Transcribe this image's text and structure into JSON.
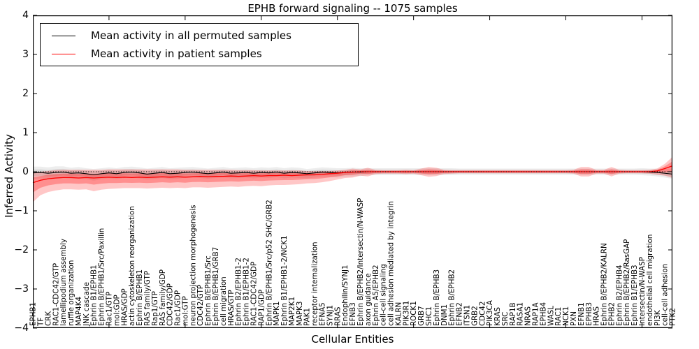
{
  "title": "EPHB forward signaling -- 1075 samples",
  "axes": {
    "ylabel": "Inferred Activity",
    "xlabel": "Cellular Entities",
    "yticks": [
      "4",
      "3",
      "2",
      "1",
      "0",
      "−1",
      "−2",
      "−3",
      "−4"
    ],
    "ylim": [
      -4,
      4
    ],
    "x_major_tick_every": 10
  },
  "legend": {
    "items": [
      {
        "label": "Mean activity in all permuted samples",
        "color": "#000000"
      },
      {
        "label": "Mean activity in patient samples",
        "color": "#ff0000"
      }
    ]
  },
  "colors": {
    "background": "#ffffff",
    "axis": "#000000",
    "permuted_line": "#000000",
    "permuted_band": "#999999",
    "patient_line": "#ff0000",
    "patient_band": "#ff0000",
    "zero_line": "#000000"
  },
  "chart_data": {
    "type": "line",
    "title": "EPHB forward signaling -- 1075 samples",
    "xlabel": "Cellular Entities",
    "ylabel": "Inferred Activity",
    "ylim": [
      -4,
      4
    ],
    "grid": false,
    "legend_position": "upper left",
    "zero_line": {
      "value": 0,
      "style": "dotted",
      "color": "#000000"
    },
    "categories": [
      "EPHB1",
      "TF",
      "CRK",
      "RAC1-CDC42/GTP",
      "lamellipodium assembly",
      "ruffle organization",
      "MAP4K4",
      "JNK cascade",
      "Ephrin B1/EPHB1",
      "Ephrin B/EPHB1/Src/Paxillin",
      "Rac1/GTP",
      "mol:GDP",
      "HRAS/GDP",
      "actin cytoskeleton reorganization",
      "Ephrin B/EPHB1",
      "RAS family/GTP",
      "Rap1/GTP",
      "RAS family/GDP",
      "CDC42/GDP",
      "Rac1/GDP",
      "mol:GTP",
      "neuron projection morphogenesis",
      "CDC42/GTP",
      "Ephrin B/EPHB1/Src",
      "Ephrin B/EPHB1/GRB7",
      "cell migration",
      "HRAS/GTP",
      "Ephrin B2/EPHB1-2",
      "Ephrin B1/EPHB1-2",
      "RAC1-CDC42/GDP",
      "RAP1/GDP",
      "Ephrin B/EPHB1/Src/p52 SHC/GRB2",
      "MAPK1",
      "Ephrin B1/EPHB1-2/NCK1",
      "MAP2K1",
      "MAPK3",
      "PAK1",
      "receptor internalization",
      "EFNA5",
      "SYNJ1",
      "RRAS",
      "Endophilin/SYNJ1",
      "EFNB3",
      "Ephrin B/EPHB2/Intersectin/N-WASP",
      "axon guidance",
      "Ephrin A5/EPHB2",
      "cell-cell signaling",
      "cell adhesion mediated by integrin",
      "KALRN",
      "PIK3R1",
      "ROCK1",
      "GRB7",
      "SHC1",
      "Ephrin B/EPHB3",
      "DNM1",
      "Ephrin B/EPHB2",
      "EFNB2",
      "ITSN1",
      "GRB2",
      "CDC42",
      "PIK3CA",
      "KRAS",
      "SRC",
      "RAP1B",
      "RASA1",
      "NRAS",
      "RAP1A",
      "EPHB4",
      "WASL",
      "RAC1",
      "NCK1",
      "PXN",
      "EFNB1",
      "EPHB3",
      "HRAS",
      "Ephrin B/EPHB2/KALRN",
      "EPHB2",
      "Ephrin B2/EPHB4",
      "Ephrin B/EPHB2/RasGAP",
      "Ephrin B1/EPHB3",
      "Intersectin/N-WASP",
      "endothelial cell migration",
      "PI3K",
      "cell-cell adhesion",
      "PTK2"
    ],
    "series": [
      {
        "name": "Mean activity in all permuted samples",
        "color": "#000000",
        "values": [
          -0.03,
          -0.02,
          -0.04,
          -0.02,
          -0.01,
          -0.04,
          -0.03,
          -0.05,
          -0.08,
          -0.05,
          -0.03,
          -0.05,
          -0.02,
          -0.01,
          -0.03,
          -0.06,
          -0.04,
          -0.02,
          -0.05,
          -0.04,
          -0.02,
          -0.01,
          -0.03,
          -0.05,
          -0.03,
          -0.01,
          -0.04,
          -0.03,
          -0.02,
          -0.04,
          -0.02,
          -0.03,
          -0.01,
          -0.04,
          -0.02,
          -0.03,
          -0.05,
          -0.03,
          -0.01,
          -0.02,
          -0.03,
          -0.02,
          -0.01,
          -0.01,
          0,
          0,
          0,
          0,
          0,
          0,
          0,
          0,
          0,
          0,
          0,
          0,
          0,
          0,
          0,
          0,
          0,
          0,
          0,
          0,
          0,
          0,
          0,
          0,
          0,
          0,
          0,
          0,
          0,
          0,
          0,
          0,
          0,
          0,
          0,
          0,
          0,
          -0.01,
          -0.02,
          -0.04,
          -0.06
        ],
        "band_halfwidth": [
          0.16,
          0.15,
          0.15,
          0.16,
          0.15,
          0.14,
          0.15,
          0.14,
          0.15,
          0.14,
          0.14,
          0.14,
          0.14,
          0.14,
          0.14,
          0.14,
          0.14,
          0.14,
          0.14,
          0.14,
          0.13,
          0.13,
          0.13,
          0.13,
          0.13,
          0.13,
          0.13,
          0.13,
          0.13,
          0.13,
          0.13,
          0.13,
          0.13,
          0.13,
          0.13,
          0.13,
          0.12,
          0.12,
          0.12,
          0.12,
          0.12,
          0.11,
          0.11,
          0.1,
          0.09,
          0.09,
          0.09,
          0.09,
          0.09,
          0.09,
          0.09,
          0.09,
          0.09,
          0.09,
          0.09,
          0.09,
          0.08,
          0.08,
          0.08,
          0.08,
          0.08,
          0.08,
          0.08,
          0.08,
          0.08,
          0.08,
          0.08,
          0.08,
          0.08,
          0.08,
          0.08,
          0.08,
          0.08,
          0.08,
          0.08,
          0.08,
          0.08,
          0.08,
          0.08,
          0.08,
          0.09,
          0.09,
          0.1,
          0.11,
          0.12
        ]
      },
      {
        "name": "Mean activity in patient samples",
        "color": "#ff0000",
        "values": [
          -0.28,
          -0.22,
          -0.18,
          -0.16,
          -0.15,
          -0.15,
          -0.16,
          -0.15,
          -0.16,
          -0.15,
          -0.14,
          -0.15,
          -0.14,
          -0.15,
          -0.14,
          -0.15,
          -0.14,
          -0.13,
          -0.14,
          -0.13,
          -0.14,
          -0.13,
          -0.12,
          -0.13,
          -0.12,
          -0.12,
          -0.11,
          -0.12,
          -0.11,
          -0.1,
          -0.11,
          -0.1,
          -0.1,
          -0.09,
          -0.1,
          -0.09,
          -0.08,
          -0.08,
          -0.07,
          -0.05,
          -0.04,
          -0.02,
          -0.01,
          0,
          0,
          0,
          0,
          0,
          0,
          0,
          0,
          0,
          0,
          0,
          0,
          0,
          0,
          0,
          0,
          0,
          0,
          0,
          0,
          0,
          0,
          0,
          0,
          0,
          0,
          0,
          0,
          0,
          0,
          0,
          0,
          0,
          0,
          0,
          0,
          0,
          0,
          0,
          0.02,
          0.08,
          0.15
        ],
        "band_hi": [
          -0.02,
          0.0,
          0.02,
          0.04,
          0.05,
          0.05,
          0.05,
          0.05,
          0.05,
          0.05,
          0.06,
          0.06,
          0.06,
          0.06,
          0.06,
          0.06,
          0.06,
          0.06,
          0.06,
          0.06,
          0.05,
          0.05,
          0.05,
          0.05,
          0.05,
          0.05,
          0.05,
          0.04,
          0.04,
          0.04,
          0.03,
          0.03,
          0.03,
          0.03,
          0.03,
          0.03,
          0.02,
          0.02,
          0.02,
          0.02,
          0.03,
          0.05,
          0.08,
          0.06,
          0.1,
          0.05,
          0.04,
          0.04,
          0.04,
          0.05,
          0.04,
          0.08,
          0.12,
          0.1,
          0.05,
          0.04,
          0.04,
          0.04,
          0.04,
          0.04,
          0.04,
          0.04,
          0.04,
          0.04,
          0.04,
          0.04,
          0.04,
          0.04,
          0.04,
          0.04,
          0.04,
          0.05,
          0.12,
          0.12,
          0.05,
          0.05,
          0.12,
          0.05,
          0.04,
          0.04,
          0.04,
          0.05,
          0.08,
          0.2,
          0.38
        ],
        "band_lo": [
          -0.78,
          -0.6,
          -0.52,
          -0.48,
          -0.45,
          -0.45,
          -0.46,
          -0.45,
          -0.5,
          -0.46,
          -0.44,
          -0.43,
          -0.42,
          -0.42,
          -0.42,
          -0.43,
          -0.42,
          -0.41,
          -0.42,
          -0.41,
          -0.42,
          -0.4,
          -0.4,
          -0.41,
          -0.4,
          -0.39,
          -0.38,
          -0.39,
          -0.37,
          -0.36,
          -0.37,
          -0.35,
          -0.34,
          -0.34,
          -0.33,
          -0.32,
          -0.3,
          -0.29,
          -0.27,
          -0.24,
          -0.2,
          -0.16,
          -0.15,
          -0.1,
          -0.12,
          -0.06,
          -0.05,
          -0.05,
          -0.05,
          -0.06,
          -0.05,
          -0.09,
          -0.13,
          -0.11,
          -0.06,
          -0.05,
          -0.04,
          -0.04,
          -0.04,
          -0.04,
          -0.04,
          -0.04,
          -0.04,
          -0.04,
          -0.04,
          -0.04,
          -0.04,
          -0.04,
          -0.04,
          -0.04,
          -0.04,
          -0.05,
          -0.12,
          -0.12,
          -0.05,
          -0.05,
          -0.12,
          -0.05,
          -0.04,
          -0.04,
          -0.04,
          -0.05,
          -0.08,
          -0.1,
          -0.16
        ]
      }
    ]
  }
}
